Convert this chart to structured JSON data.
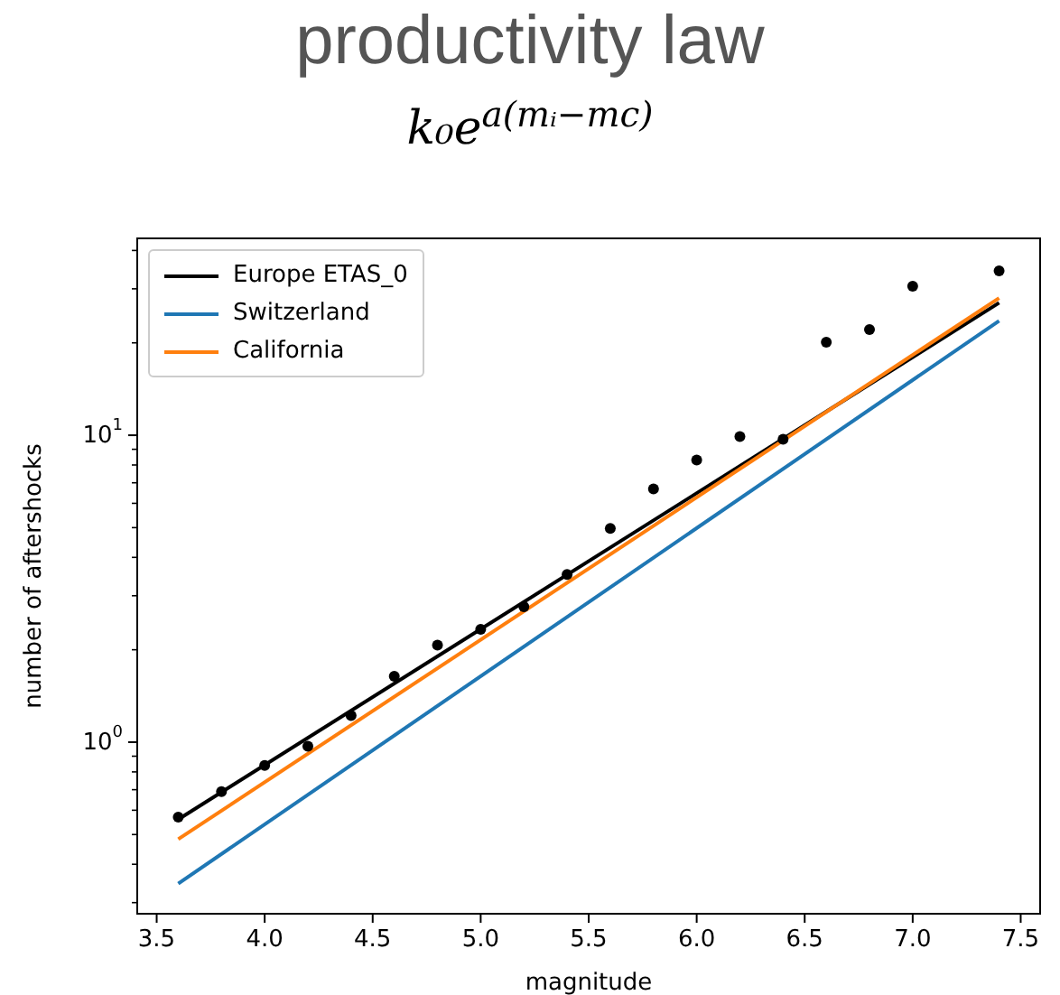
{
  "chart_data": {
    "type": "line",
    "title": "productivity law",
    "subtitle": "k₀e$^{a(mᵢ−mc)}$",
    "xlabel": "magnitude",
    "ylabel": "number of aftershocks",
    "log": "y",
    "grid": false,
    "legend": "top left",
    "xlim": [
      3.41,
      7.59
    ],
    "xticks": [
      {
        "value": 3.5,
        "label": "3.5"
      },
      {
        "value": 4,
        "label": "4.0"
      },
      {
        "value": 4.5,
        "label": "4.5"
      },
      {
        "value": 5,
        "label": "5.0"
      },
      {
        "value": 5.5,
        "label": "5.5"
      },
      {
        "value": 6,
        "label": "6.0"
      },
      {
        "value": 6.5,
        "label": "6.5"
      },
      {
        "value": 7,
        "label": "7.0"
      },
      {
        "value": 7.5,
        "label": "7.5"
      }
    ],
    "ylim": [
      0.276,
      43.8
    ],
    "yticks": [
      {
        "value": 0.3,
        "label": null
      },
      {
        "value": 0.4,
        "label": null
      },
      {
        "value": 0.5,
        "label": null
      },
      {
        "value": 0.6,
        "label": null
      },
      {
        "value": 0.7,
        "label": null
      },
      {
        "value": 0.8,
        "label": null
      },
      {
        "value": 0.9,
        "label": null
      },
      {
        "value": 1,
        "label": "10$^{0}$"
      },
      {
        "value": 2,
        "label": null
      },
      {
        "value": 3,
        "label": null
      },
      {
        "value": 4,
        "label": null
      },
      {
        "value": 5,
        "label": null
      },
      {
        "value": 6,
        "label": null
      },
      {
        "value": 7,
        "label": null
      },
      {
        "value": 8,
        "label": null
      },
      {
        "value": 9,
        "label": null
      },
      {
        "value": 10,
        "label": "10$^{1}$"
      },
      {
        "value": 20,
        "label": null
      },
      {
        "value": 30,
        "label": null
      },
      {
        "value": 40,
        "label": null
      }
    ],
    "series": [
      {
        "type": "scatter",
        "marker": "circle",
        "color": "#000000",
        "x": [
          3.6,
          3.8,
          4.0,
          4.2,
          4.4,
          4.6,
          4.8,
          5.0,
          5.2,
          5.4,
          5.6,
          5.8,
          6.0,
          6.2,
          6.4,
          6.6,
          6.8,
          7.0,
          7.4
        ],
        "values": [
          0.57,
          0.69,
          0.84,
          0.97,
          1.22,
          1.64,
          2.07,
          2.33,
          2.76,
          3.52,
          4.97,
          6.69,
          8.3,
          9.9,
          9.7,
          20.1,
          22.1,
          30.6,
          34.3
        ]
      },
      {
        "name": "Europe ETAS_0",
        "color": "#000000",
        "x": [
          3.6,
          7.4
        ],
        "values": [
          0.56,
          27.0
        ]
      },
      {
        "name": "Switzerland",
        "color": "#1f77b4",
        "x": [
          3.6,
          7.4
        ],
        "values": [
          0.346,
          23.6
        ]
      },
      {
        "name": "California",
        "color": "#ff7f0e",
        "x": [
          3.6,
          7.4
        ],
        "values": [
          0.483,
          28.0
        ]
      }
    ]
  }
}
